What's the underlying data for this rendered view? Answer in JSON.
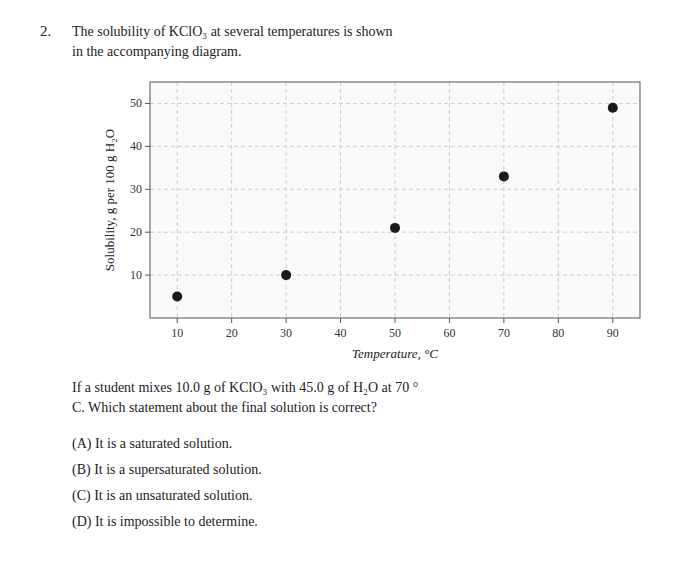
{
  "chart_data": {
    "type": "scatter",
    "title": [
      "The solubility of KClO₃ at several temperatures is shown",
      "in the accompanying diagram."
    ],
    "x_label": "Temperature, °C",
    "y_label": "Solubility, g per 100 g H₂O",
    "x": [
      10,
      30,
      50,
      70,
      90
    ],
    "values": [
      5,
      10,
      21,
      33,
      49
    ],
    "color": "#1a1a1a",
    "xlim": [
      5,
      95
    ],
    "ylim": [
      0,
      55
    ],
    "xticks": [
      10,
      20,
      30,
      40,
      50,
      60,
      70,
      80,
      90
    ],
    "yticks": [
      10,
      20,
      30,
      40,
      50
    ],
    "grid": true,
    "annotations": [
      "2.",
      "If a student mixes 10.0 g of KClO₃ with 45.0 g of H₂O at 70 °",
      "C. Which statement about the final solution is correct?",
      "(A)  It is a saturated solution.",
      "(B)  It is a supersaturated solution.",
      "(C)  It is an unsaturated solution.",
      "(D)  It is impossible to determine."
    ]
  }
}
